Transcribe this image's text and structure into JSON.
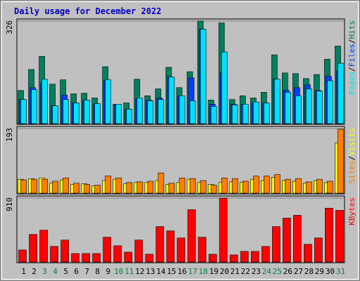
{
  "chart_data": [
    {
      "type": "bar",
      "title": "Daily usage for December 2022",
      "ylim": [
        0,
        326
      ],
      "yticks": [
        326
      ],
      "grid": true,
      "legend_separator": "/",
      "series": [
        {
          "name": "Hits",
          "color": "#008060",
          "values": [
            104,
            171,
            213,
            124,
            138,
            93,
            95,
            80,
            180,
            60,
            64,
            140,
            87,
            109,
            178,
            113,
            164,
            326,
            73,
            320,
            75,
            87,
            80,
            98,
            218,
            160,
            158,
            142,
            155,
            204,
            246
          ]
        },
        {
          "name": "Files",
          "color": "#0040ff",
          "values": [
            75,
            113,
            127,
            55,
            89,
            64,
            71,
            60,
            135,
            60,
            44,
            78,
            73,
            80,
            147,
            87,
            144,
            300,
            60,
            160,
            60,
            60,
            64,
            64,
            140,
            104,
            113,
            122,
            104,
            149,
            167
          ]
        },
        {
          "name": "Pages",
          "color": "#00e0ff",
          "values": [
            75,
            107,
            140,
            55,
            75,
            64,
            73,
            62,
            138,
            60,
            44,
            80,
            71,
            75,
            147,
            87,
            71,
            300,
            53,
            227,
            58,
            60,
            67,
            64,
            140,
            98,
            87,
            109,
            102,
            135,
            191
          ]
        }
      ]
    },
    {
      "type": "bar",
      "ylim": [
        0,
        193
      ],
      "yticks": [
        193
      ],
      "grid": true,
      "legend_separator": "/",
      "series": [
        {
          "name": "Visits",
          "color": "#ffff00",
          "values": [
            40,
            42,
            44,
            28,
            38,
            24,
            26,
            20,
            36,
            40,
            26,
            30,
            30,
            36,
            24,
            30,
            40,
            30,
            24,
            30,
            32,
            30,
            40,
            36,
            46,
            36,
            34,
            28,
            36,
            30,
            149
          ]
        },
        {
          "name": "Sites",
          "color": "#ff8000",
          "values": [
            38,
            40,
            40,
            34,
            44,
            28,
            24,
            22,
            50,
            44,
            30,
            32,
            34,
            59,
            28,
            44,
            42,
            36,
            22,
            44,
            42,
            34,
            50,
            50,
            54,
            40,
            42,
            32,
            40,
            34,
            191
          ]
        }
      ]
    },
    {
      "type": "bar",
      "ylim": [
        0,
        910
      ],
      "yticks": [
        910
      ],
      "grid": true,
      "categories": [
        "1",
        "2",
        "3",
        "4",
        "5",
        "6",
        "7",
        "8",
        "9",
        "10",
        "11",
        "12",
        "13",
        "14",
        "15",
        "16",
        "17",
        "18",
        "19",
        "20",
        "21",
        "22",
        "23",
        "24",
        "25",
        "26",
        "27",
        "28",
        "29",
        "30",
        "31"
      ],
      "category_colors": [
        "#000000",
        "#000000",
        "#008040",
        "#008040",
        "#000000",
        "#000000",
        "#000000",
        "#000000",
        "#000000",
        "#008040",
        "#008040",
        "#000000",
        "#000000",
        "#000000",
        "#000000",
        "#000000",
        "#008040",
        "#008040",
        "#000000",
        "#000000",
        "#000000",
        "#000000",
        "#000000",
        "#008040",
        "#008040",
        "#000000",
        "#000000",
        "#000000",
        "#000000",
        "#000000",
        "#008040"
      ],
      "series": [
        {
          "name": "KBytes",
          "color": "#ff0000",
          "values": [
            163,
            387,
            448,
            214,
            306,
            112,
            112,
            112,
            347,
            224,
            132,
            306,
            102,
            500,
            438,
            336,
            744,
            347,
            102,
            910,
            92,
            143,
            143,
            214,
            500,
            622,
            663,
            245,
            336,
            765,
            734
          ]
        }
      ]
    }
  ]
}
